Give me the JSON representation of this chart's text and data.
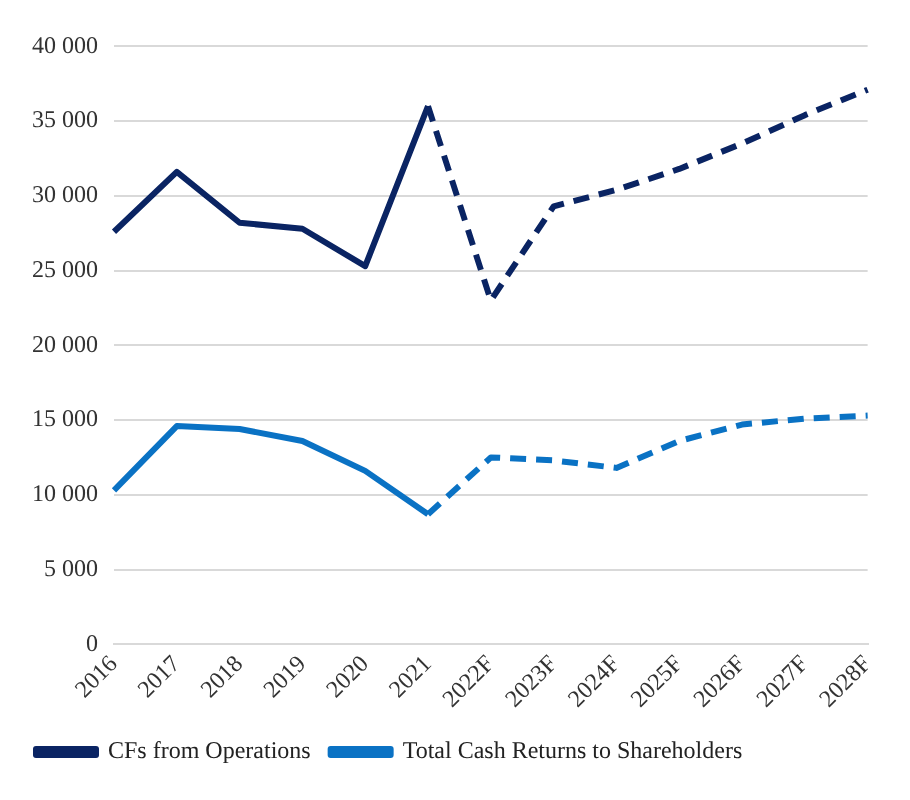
{
  "chart_data": {
    "type": "line",
    "categories": [
      "2016",
      "2017",
      "2018",
      "2019",
      "2020",
      "2021",
      "2022F",
      "2023F",
      "2024F",
      "2025F",
      "2026F",
      "2027F",
      "2028F"
    ],
    "series": [
      {
        "name": "CFs from Operations",
        "color": "#0a2463",
        "line_style": "solid",
        "values": [
          27600,
          31600,
          28200,
          27800,
          25300,
          36000,
          null,
          null,
          null,
          null,
          null,
          null,
          null
        ]
      },
      {
        "name": "Total Cash Returns to Shareholders",
        "color": "#0a72c4",
        "line_style": "solid",
        "values": [
          10300,
          14600,
          14400,
          13600,
          11600,
          8700,
          null,
          null,
          null,
          null,
          null,
          null,
          null
        ]
      },
      {
        "color": "#0a2463",
        "line_style": "dashed",
        "values": [
          null,
          null,
          null,
          null,
          null,
          36000,
          23000,
          29300,
          30400,
          31800,
          33500,
          35400,
          37100
        ]
      },
      {
        "color": "#0a72c4",
        "line_style": "dashed",
        "values": [
          null,
          null,
          null,
          null,
          null,
          8700,
          12500,
          12300,
          11800,
          13600,
          14700,
          15100,
          15300
        ]
      }
    ],
    "ylim": [
      0,
      40000
    ],
    "yticks": [
      {
        "value": 0,
        "label": "0"
      },
      {
        "value": 5000,
        "label": "5 000"
      },
      {
        "value": 10000,
        "label": "10 000"
      },
      {
        "value": 15000,
        "label": "15 000"
      },
      {
        "value": 20000,
        "label": "20 000"
      },
      {
        "value": 25000,
        "label": "25 000"
      },
      {
        "value": 30000,
        "label": "30 000"
      },
      {
        "value": 35000,
        "label": "35 000"
      },
      {
        "value": 40000,
        "label": "40 000"
      }
    ],
    "grid": "y",
    "legend": "bottom",
    "marker": "none"
  }
}
